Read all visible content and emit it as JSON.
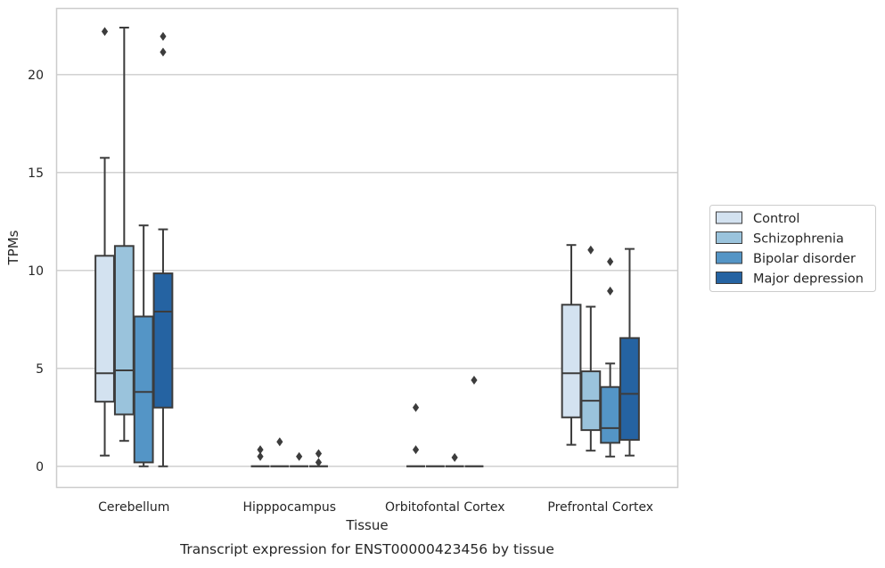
{
  "chart_data": {
    "type": "box",
    "title": "",
    "caption": "Transcript expression for ENST00000423456 by tissue",
    "xlabel": "Tissue",
    "ylabel": "TPMs",
    "ylim": [
      -1.1,
      23.4
    ],
    "yticks": [
      0,
      5,
      10,
      15,
      20
    ],
    "grid": "horizontal",
    "legend_position": "right",
    "categories": [
      "Cerebellum",
      "Hipppocampus",
      "Orbitofontal Cortex",
      "Prefrontal Cortex"
    ],
    "series": [
      {
        "name": "Control",
        "color": "#d3e2f0",
        "boxes": [
          {
            "whislo": 0.55,
            "q1": 3.3,
            "med": 4.75,
            "q3": 10.75,
            "whishi": 15.75,
            "fliers": [
              22.2
            ]
          },
          {
            "whislo": 0,
            "q1": 0,
            "med": 0,
            "q3": 0,
            "whishi": 0,
            "fliers": [
              0.85,
              0.5
            ]
          },
          {
            "whislo": 0,
            "q1": 0,
            "med": 0,
            "q3": 0,
            "whishi": 0,
            "fliers": [
              3.0,
              0.85
            ]
          },
          {
            "whislo": 1.1,
            "q1": 2.5,
            "med": 4.75,
            "q3": 8.25,
            "whishi": 11.3,
            "fliers": []
          }
        ]
      },
      {
        "name": "Schizophrenia",
        "color": "#9ac3dc",
        "boxes": [
          {
            "whislo": 1.3,
            "q1": 2.65,
            "med": 4.9,
            "q3": 11.25,
            "whishi": 22.4,
            "fliers": []
          },
          {
            "whislo": 0,
            "q1": 0,
            "med": 0,
            "q3": 0,
            "whishi": 0,
            "fliers": [
              1.25
            ]
          },
          {
            "whislo": 0,
            "q1": 0,
            "med": 0,
            "q3": 0,
            "whishi": 0,
            "fliers": []
          },
          {
            "whislo": 0.8,
            "q1": 1.85,
            "med": 3.35,
            "q3": 4.85,
            "whishi": 8.15,
            "fliers": [
              11.05
            ]
          }
        ]
      },
      {
        "name": "Bipolar disorder",
        "color": "#5495c6",
        "boxes": [
          {
            "whislo": 0,
            "q1": 0.2,
            "med": 3.8,
            "q3": 7.65,
            "whishi": 12.3,
            "fliers": []
          },
          {
            "whislo": 0,
            "q1": 0,
            "med": 0,
            "q3": 0,
            "whishi": 0,
            "fliers": [
              0.5
            ]
          },
          {
            "whislo": 0,
            "q1": 0,
            "med": 0,
            "q3": 0,
            "whishi": 0,
            "fliers": [
              0.45
            ]
          },
          {
            "whislo": 0.5,
            "q1": 1.2,
            "med": 1.95,
            "q3": 4.05,
            "whishi": 5.25,
            "fliers": [
              8.95,
              10.45
            ]
          }
        ]
      },
      {
        "name": "Major depression",
        "color": "#2563a2",
        "boxes": [
          {
            "whislo": 0,
            "q1": 3.0,
            "med": 7.9,
            "q3": 9.85,
            "whishi": 12.1,
            "fliers": [
              21.95,
              21.15
            ]
          },
          {
            "whislo": 0,
            "q1": 0,
            "med": 0,
            "q3": 0,
            "whishi": 0,
            "fliers": [
              0.65,
              0.2
            ]
          },
          {
            "whislo": 0,
            "q1": 0,
            "med": 0,
            "q3": 0,
            "whishi": 0,
            "fliers": [
              4.4
            ]
          },
          {
            "whislo": 0.55,
            "q1": 1.35,
            "med": 3.7,
            "q3": 6.55,
            "whishi": 11.1,
            "fliers": []
          }
        ]
      }
    ]
  }
}
